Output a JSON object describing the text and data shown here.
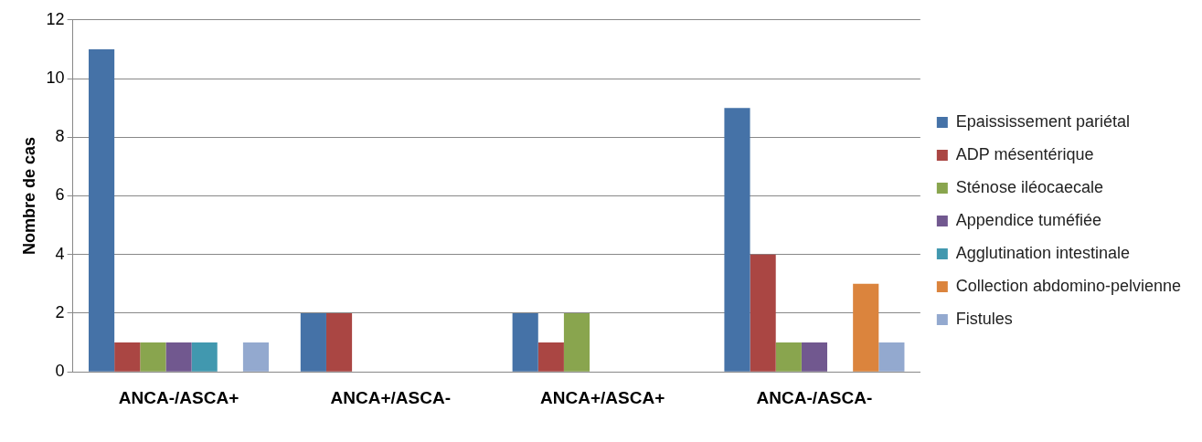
{
  "chart_data": {
    "type": "bar",
    "ylabel": "Nombre de cas",
    "categories": [
      "ANCA-/ASCA+",
      "ANCA+/ASCA-",
      "ANCA+/ASCA+",
      "ANCA-/ASCA-"
    ],
    "series": [
      {
        "name": "Epaississement pariétal",
        "color": "#4572a7",
        "values": [
          11,
          2,
          2,
          9
        ]
      },
      {
        "name": "ADP mésentérique",
        "color": "#aa4643",
        "values": [
          1,
          2,
          1,
          4
        ]
      },
      {
        "name": "Sténose iléocaecale",
        "color": "#89a54e",
        "values": [
          1,
          0,
          2,
          1
        ]
      },
      {
        "name": "Appendice tuméfiée",
        "color": "#71588f",
        "values": [
          1,
          0,
          0,
          1
        ]
      },
      {
        "name": "Agglutination intestinale",
        "color": "#4198af",
        "values": [
          1,
          0,
          0,
          0
        ]
      },
      {
        "name": "Collection abdomino-pelvienne",
        "color": "#db843d",
        "values": [
          0,
          0,
          0,
          3
        ]
      },
      {
        "name": "Fistules",
        "color": "#93a9cf",
        "values": [
          1,
          0,
          0,
          1
        ]
      }
    ],
    "ylim": [
      0,
      12
    ],
    "yticks": [
      0,
      2,
      4,
      6,
      8,
      10,
      12
    ],
    "grid": "y",
    "legend": "right"
  }
}
